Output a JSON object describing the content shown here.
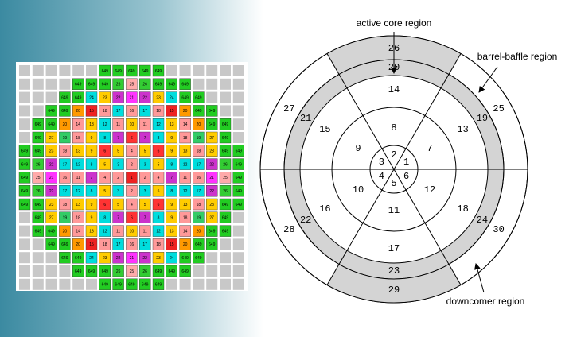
{
  "grid": {
    "rows": [
      [
        null,
        null,
        null,
        null,
        null,
        null,
        "649",
        "649",
        "649",
        "649",
        "649",
        null,
        null,
        null,
        null,
        null,
        null
      ],
      [
        null,
        null,
        null,
        null,
        "649",
        "649",
        "649",
        "26",
        "25",
        "26",
        "649",
        "649",
        "649",
        null,
        null,
        null,
        null
      ],
      [
        null,
        null,
        null,
        "649",
        "649",
        "24",
        "23",
        "22",
        "21",
        "22",
        "23",
        "24",
        "649",
        "649",
        null,
        null,
        null
      ],
      [
        null,
        null,
        "649",
        "649",
        "20",
        "15",
        "18",
        "17",
        "16",
        "17",
        "18",
        "15",
        "20",
        "649",
        "649",
        null,
        null
      ],
      [
        null,
        "649",
        "649",
        "20",
        "14",
        "13",
        "12",
        "11",
        "10",
        "11",
        "12",
        "13",
        "14",
        "20",
        "649",
        "649",
        null
      ],
      [
        null,
        "649",
        "27",
        "19",
        "18",
        "9",
        "8",
        "7",
        "6",
        "7",
        "8",
        "9",
        "18",
        "19",
        "27",
        "649",
        null
      ],
      [
        "649",
        "649",
        "23",
        "18",
        "13",
        "9",
        "6",
        "5",
        "4",
        "5",
        "6",
        "9",
        "13",
        "18",
        "23",
        "649",
        "649"
      ],
      [
        "649",
        "26",
        "22",
        "17",
        "12",
        "8",
        "5",
        "3",
        "2",
        "3",
        "5",
        "8",
        "12",
        "17",
        "22",
        "26",
        "649"
      ],
      [
        "649",
        "25",
        "21",
        "16",
        "11",
        "7",
        "4",
        "2",
        "1",
        "2",
        "4",
        "7",
        "11",
        "16",
        "21",
        "25",
        "649"
      ],
      [
        "649",
        "26",
        "22",
        "17",
        "12",
        "8",
        "5",
        "3",
        "2",
        "3",
        "5",
        "8",
        "12",
        "17",
        "22",
        "26",
        "649"
      ],
      [
        "649",
        "649",
        "23",
        "18",
        "13",
        "9",
        "6",
        "5",
        "4",
        "5",
        "6",
        "9",
        "13",
        "18",
        "23",
        "649",
        "649"
      ],
      [
        null,
        "649",
        "27",
        "19",
        "18",
        "9",
        "8",
        "7",
        "6",
        "7",
        "8",
        "9",
        "18",
        "19",
        "27",
        "649",
        null
      ],
      [
        null,
        "649",
        "649",
        "20",
        "14",
        "13",
        "12",
        "11",
        "10",
        "11",
        "12",
        "13",
        "14",
        "20",
        "649",
        "649",
        null
      ],
      [
        null,
        null,
        "649",
        "649",
        "20",
        "15",
        "18",
        "17",
        "16",
        "17",
        "18",
        "15",
        "20",
        "649",
        "649",
        null,
        null
      ],
      [
        null,
        null,
        null,
        "649",
        "649",
        "24",
        "23",
        "22",
        "21",
        "22",
        "23",
        "24",
        "649",
        "649",
        null,
        null,
        null
      ],
      [
        null,
        null,
        null,
        null,
        "649",
        "649",
        "649",
        "26",
        "25",
        "26",
        "649",
        "649",
        "649",
        null,
        null,
        null,
        null
      ],
      [
        null,
        null,
        null,
        null,
        null,
        null,
        "649",
        "649",
        "649",
        "649",
        "649",
        null,
        null,
        null,
        null,
        null,
        null
      ]
    ],
    "palette": {
      "649": "#22cc22",
      "1": "#ee2222",
      "2": "#ff9999",
      "3": "#00dddd",
      "4": "#ff9999",
      "5": "#ffcc00",
      "6": "#ff3333",
      "7": "#cc33cc",
      "8": "#00dddd",
      "9": "#ffcc00",
      "10": "#ffcc00",
      "11": "#ff9999",
      "12": "#00dddd",
      "13": "#ffcc00",
      "14": "#ff9999",
      "15": "#ee2222",
      "16": "#ff9999",
      "17": "#00dddd",
      "18": "#ff9999",
      "19": "#33cc66",
      "20": "#ff9900",
      "21": "#ff33ff",
      "22": "#cc33cc",
      "23": "#ffcc00",
      "24": "#00dddd",
      "25": "#ffaaaa",
      "26": "#33cc33",
      "27": "#ffcc00"
    }
  },
  "diagram": {
    "sectors": [
      {
        "labels": [
          "1",
          "7",
          "13",
          "19",
          "25"
        ]
      },
      {
        "labels": [
          "2",
          "8",
          "14",
          "20",
          "26"
        ]
      },
      {
        "labels": [
          "3",
          "9",
          "15",
          "21",
          "27"
        ]
      },
      {
        "labels": [
          "4",
          "10",
          "16",
          "22",
          "28"
        ]
      },
      {
        "labels": [
          "5",
          "11",
          "17",
          "23",
          "29"
        ]
      },
      {
        "labels": [
          "6",
          "12",
          "18",
          "24",
          "30"
        ]
      }
    ],
    "annotations": {
      "active_core": "active core region",
      "barrel_baffle": "barrel-baffle region",
      "downcomer": "downcomer region"
    }
  }
}
